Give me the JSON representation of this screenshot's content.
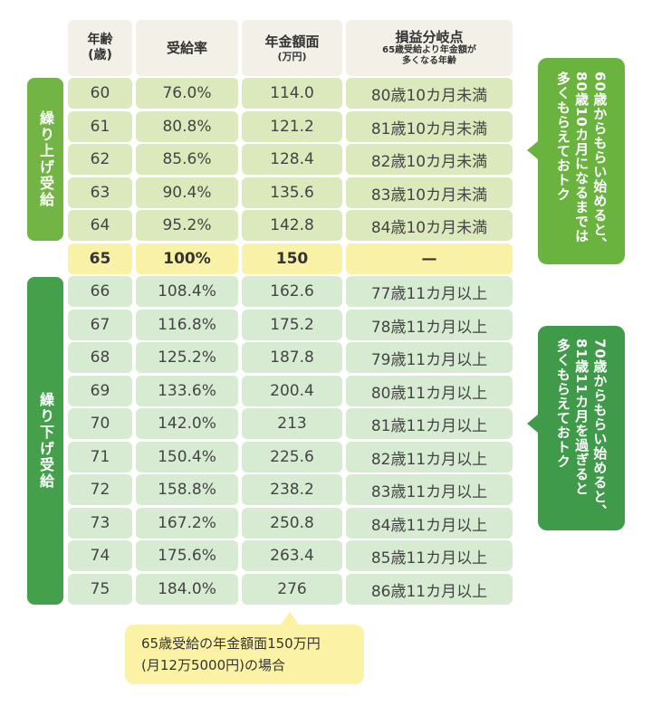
{
  "headers": {
    "age": {
      "main": "年齢",
      "sub": "(歳)"
    },
    "rate": {
      "main": "受給率"
    },
    "amount": {
      "main": "年金額面",
      "sub": "(万円)"
    },
    "breakeven": {
      "main": "損益分岐点",
      "sub1": "65歳受給より年金額が",
      "sub2": "多くなる年齢"
    }
  },
  "groups": {
    "early_label": "繰り上げ受給",
    "late_label": "繰り下げ受給"
  },
  "rows": [
    {
      "age": "60",
      "rate": "76.0%",
      "amount": "114.0",
      "breakeven": "80歳10カ月未満",
      "group": "early"
    },
    {
      "age": "61",
      "rate": "80.8%",
      "amount": "121.2",
      "breakeven": "81歳10カ月未満",
      "group": "early"
    },
    {
      "age": "62",
      "rate": "85.6%",
      "amount": "128.4",
      "breakeven": "82歳10カ月未満",
      "group": "early"
    },
    {
      "age": "63",
      "rate": "90.4%",
      "amount": "135.6",
      "breakeven": "83歳10カ月未満",
      "group": "early"
    },
    {
      "age": "64",
      "rate": "95.2%",
      "amount": "142.8",
      "breakeven": "84歳10カ月未満",
      "group": "early"
    },
    {
      "age": "65",
      "rate": "100%",
      "amount": "150",
      "breakeven": "—",
      "group": "pivot"
    },
    {
      "age": "66",
      "rate": "108.4%",
      "amount": "162.6",
      "breakeven": "77歳11カ月以上",
      "group": "late"
    },
    {
      "age": "67",
      "rate": "116.8%",
      "amount": "175.2",
      "breakeven": "78歳11カ月以上",
      "group": "late"
    },
    {
      "age": "68",
      "rate": "125.2%",
      "amount": "187.8",
      "breakeven": "79歳11カ月以上",
      "group": "late"
    },
    {
      "age": "69",
      "rate": "133.6%",
      "amount": "200.4",
      "breakeven": "80歳11カ月以上",
      "group": "late"
    },
    {
      "age": "70",
      "rate": "142.0%",
      "amount": "213",
      "breakeven": "81歳11カ月以上",
      "group": "late"
    },
    {
      "age": "71",
      "rate": "150.4%",
      "amount": "225.6",
      "breakeven": "82歳11カ月以上",
      "group": "late"
    },
    {
      "age": "72",
      "rate": "158.8%",
      "amount": "238.2",
      "breakeven": "83歳11カ月以上",
      "group": "late"
    },
    {
      "age": "73",
      "rate": "167.2%",
      "amount": "250.8",
      "breakeven": "84歳11カ月以上",
      "group": "late"
    },
    {
      "age": "74",
      "rate": "175.6%",
      "amount": "263.4",
      "breakeven": "85歳11カ月以上",
      "group": "late"
    },
    {
      "age": "75",
      "rate": "184.0%",
      "amount": "276",
      "breakeven": "86歳11カ月以上",
      "group": "late"
    }
  ],
  "callouts": {
    "early": "60歳からもらい始めると、\n80歳10カ月になるまでは\n多くもらえておトク",
    "late": "70歳からもらい始めると、\n81歳11カ月を過ぎると\n多くもらえておトク"
  },
  "note": {
    "line1": "65歳受給の年金額面150万円",
    "line2": "(月12万5000円)の場合"
  },
  "colors": {
    "early_side": "#72b545",
    "late_side": "#44a04b",
    "early_bubble": "#6ab33f",
    "late_bubble": "#3f9a4a",
    "early_cell": "#dbe9bc",
    "late_cell": "#d7ebd3",
    "pivot_cell": "#f9f1a5",
    "header_cell": "#f3f1e7"
  }
}
